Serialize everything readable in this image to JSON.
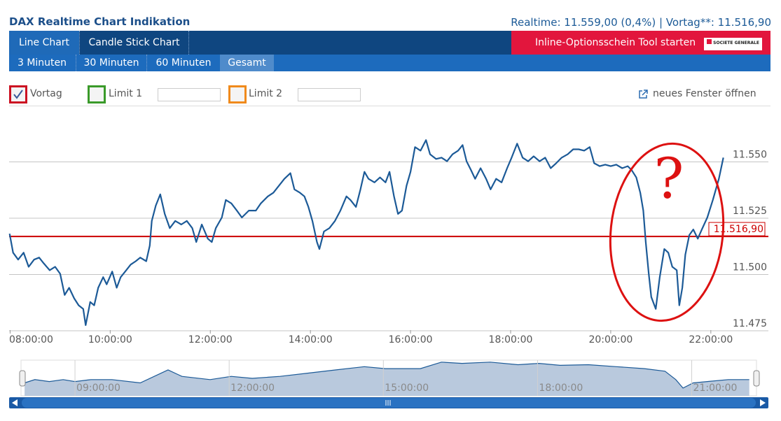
{
  "header": {
    "title": "DAX Realtime Chart Indikation",
    "quote": "Realtime: 11.559,00 (0,4%) | Vortag**: 11.516,90"
  },
  "tabs": [
    "Line Chart",
    "Candle Stick Chart"
  ],
  "promo": {
    "label": "Inline-Optionsschein Tool starten",
    "logo": "SOCIETE GENERALE"
  },
  "periods": [
    "3 Minuten",
    "30 Minuten",
    "60 Minuten",
    "Gesamt"
  ],
  "options": {
    "vortag": "Vortag",
    "limit1": "Limit 1",
    "limit2": "Limit 2",
    "new_window": "neues Fenster öffnen"
  },
  "chart_data": [
    {
      "type": "line",
      "x": [
        7.99,
        8.06,
        8.16,
        8.27,
        8.37,
        8.48,
        8.58,
        8.67,
        8.79,
        8.9,
        9.0,
        9.09,
        9.18,
        9.28,
        9.37,
        9.46,
        9.51,
        9.6,
        9.68,
        9.76,
        9.86,
        9.93,
        10.04,
        10.13,
        10.21,
        10.32,
        10.41,
        10.51,
        10.6,
        10.72,
        10.79,
        10.83,
        10.91,
        11.0,
        11.09,
        11.19,
        11.3,
        11.42,
        11.53,
        11.64,
        11.72,
        11.83,
        11.95,
        12.03,
        12.11,
        12.23,
        12.31,
        12.42,
        12.53,
        12.63,
        12.77,
        12.91,
        13.01,
        13.15,
        13.26,
        13.37,
        13.48,
        13.6,
        13.68,
        13.79,
        13.88,
        13.96,
        14.04,
        14.13,
        14.18,
        14.27,
        14.38,
        14.49,
        14.6,
        14.72,
        14.8,
        14.91,
        15.0,
        15.08,
        15.16,
        15.28,
        15.39,
        15.5,
        15.58,
        15.67,
        15.75,
        15.83,
        15.92,
        16.0,
        16.09,
        16.2,
        16.31,
        16.39,
        16.51,
        16.62,
        16.73,
        16.84,
        16.95,
        17.04,
        17.12,
        17.21,
        17.29,
        17.4,
        17.51,
        17.6,
        17.71,
        17.82,
        17.93,
        18.02,
        18.13,
        18.24,
        18.35,
        18.46,
        18.58,
        18.69,
        18.8,
        18.91,
        19.02,
        19.14,
        19.25,
        19.36,
        19.47,
        19.58,
        19.67,
        19.78,
        19.89,
        20.0,
        20.11,
        20.23,
        20.34,
        20.42,
        20.51,
        20.59,
        20.65,
        20.7,
        20.76,
        20.81,
        20.9,
        20.98,
        21.07,
        21.15,
        21.23,
        21.32,
        21.37,
        21.43,
        21.49,
        21.57,
        21.65,
        21.74,
        21.82,
        21.93,
        22.04,
        22.16,
        22.25
      ],
      "series": [
        {
          "color": "#1c5a97",
          "values": [
            11518.1,
            11509.7,
            11506.6,
            11509.7,
            11503.4,
            11506.6,
            11507.5,
            11505.0,
            11501.9,
            11503.4,
            11500.3,
            11490.9,
            11494.1,
            11489.4,
            11486.3,
            11484.7,
            11477.5,
            11487.8,
            11486.3,
            11494.1,
            11498.8,
            11495.6,
            11501.3,
            11494.1,
            11498.8,
            11501.9,
            11504.4,
            11505.9,
            11507.5,
            11505.9,
            11512.8,
            11523.8,
            11530.6,
            11535.6,
            11526.9,
            11520.6,
            11523.8,
            11522.2,
            11523.8,
            11520.6,
            11514.4,
            11522.2,
            11515.9,
            11514.4,
            11520.6,
            11525.3,
            11533.1,
            11531.6,
            11528.4,
            11525.3,
            11528.4,
            11528.4,
            11531.6,
            11534.7,
            11536.3,
            11539.4,
            11542.5,
            11545.0,
            11537.8,
            11536.3,
            11534.7,
            11530.0,
            11523.8,
            11514.4,
            11511.3,
            11519.1,
            11520.6,
            11523.8,
            11528.4,
            11534.7,
            11533.1,
            11530.0,
            11537.8,
            11545.6,
            11542.5,
            11540.9,
            11543.1,
            11540.9,
            11545.6,
            11534.7,
            11526.9,
            11528.4,
            11539.4,
            11545.6,
            11556.6,
            11555.0,
            11559.7,
            11553.4,
            11551.3,
            11551.9,
            11550.3,
            11553.4,
            11555.0,
            11557.5,
            11550.3,
            11546.3,
            11542.5,
            11547.2,
            11542.5,
            11537.8,
            11542.5,
            11540.9,
            11547.2,
            11551.9,
            11558.1,
            11551.9,
            11550.3,
            11552.5,
            11550.3,
            11551.9,
            11547.2,
            11549.4,
            11551.9,
            11553.4,
            11555.6,
            11555.6,
            11555.0,
            11556.6,
            11549.4,
            11548.1,
            11548.8,
            11548.1,
            11548.8,
            11547.2,
            11548.1,
            11546.3,
            11543.1,
            11536.3,
            11528.4,
            11514.4,
            11500.3,
            11490.0,
            11484.7,
            11498.8,
            11511.3,
            11509.7,
            11503.4,
            11501.9,
            11486.3,
            11494.1,
            11508.8,
            11517.5,
            11520.0,
            11515.9,
            11520.0,
            11525.3,
            11533.1,
            11542.5,
            11551.9
          ]
        }
      ],
      "reference_line": {
        "value": 11516.9,
        "label": "11.516,90",
        "color": "#cc0000"
      },
      "annotation": "?",
      "xlim": [
        7.98,
        23.15
      ],
      "ylim": [
        11475.3,
        11574.7
      ],
      "xticks": [
        {
          "value": 8,
          "label": "08:00:00"
        },
        {
          "value": 10,
          "label": "10:00:00"
        },
        {
          "value": 12,
          "label": "12:00:00"
        },
        {
          "value": 14,
          "label": "14:00:00"
        },
        {
          "value": 16,
          "label": "16:00:00"
        },
        {
          "value": 18,
          "label": "18:00:00"
        },
        {
          "value": 20,
          "label": "20:00:00"
        },
        {
          "value": 22,
          "label": "22:00:00"
        }
      ],
      "yticks": [
        {
          "value": 11475,
          "label": "11.475"
        },
        {
          "value": 11500,
          "label": "11.500"
        },
        {
          "value": 11525,
          "label": "11.525"
        },
        {
          "value": 11550,
          "label": "11.550"
        }
      ],
      "grid": true
    },
    {
      "type": "area",
      "x": [
        8.02,
        8.22,
        8.5,
        8.77,
        9.0,
        9.31,
        9.72,
        10.27,
        10.81,
        11.08,
        11.63,
        12.04,
        12.45,
        12.99,
        13.54,
        14.08,
        14.63,
        15.04,
        15.72,
        16.13,
        16.53,
        17.08,
        17.62,
        18.03,
        18.44,
        18.99,
        19.53,
        20.08,
        20.48,
        20.69,
        20.83,
        21.03,
        21.3,
        21.71,
        22.12
      ],
      "values": [
        11490.9,
        11503.6,
        11496,
        11503.6,
        11496,
        11503.6,
        11503.6,
        11490.9,
        11541.8,
        11516.4,
        11503.6,
        11516.4,
        11508.7,
        11516.4,
        11529.1,
        11541.8,
        11554.5,
        11546.9,
        11546.9,
        11572.3,
        11567.3,
        11572.3,
        11562.2,
        11567.3,
        11559.6,
        11562.2,
        11554.5,
        11546.9,
        11536.7,
        11503.6,
        11470.5,
        11490.9,
        11496,
        11503.6,
        11503.6
      ],
      "color": "#1c5a97",
      "fill": "#b9c9dd",
      "xlim": [
        7.95,
        22.26
      ],
      "ylim": [
        11440,
        11580
      ],
      "xticks": [
        {
          "value": 9,
          "label": "09:00:00"
        },
        {
          "value": 12,
          "label": "12:00:00"
        },
        {
          "value": 15,
          "label": "15:00:00"
        },
        {
          "value": 18,
          "label": "18:00:00"
        },
        {
          "value": 21,
          "label": "21:00:00"
        }
      ]
    }
  ]
}
